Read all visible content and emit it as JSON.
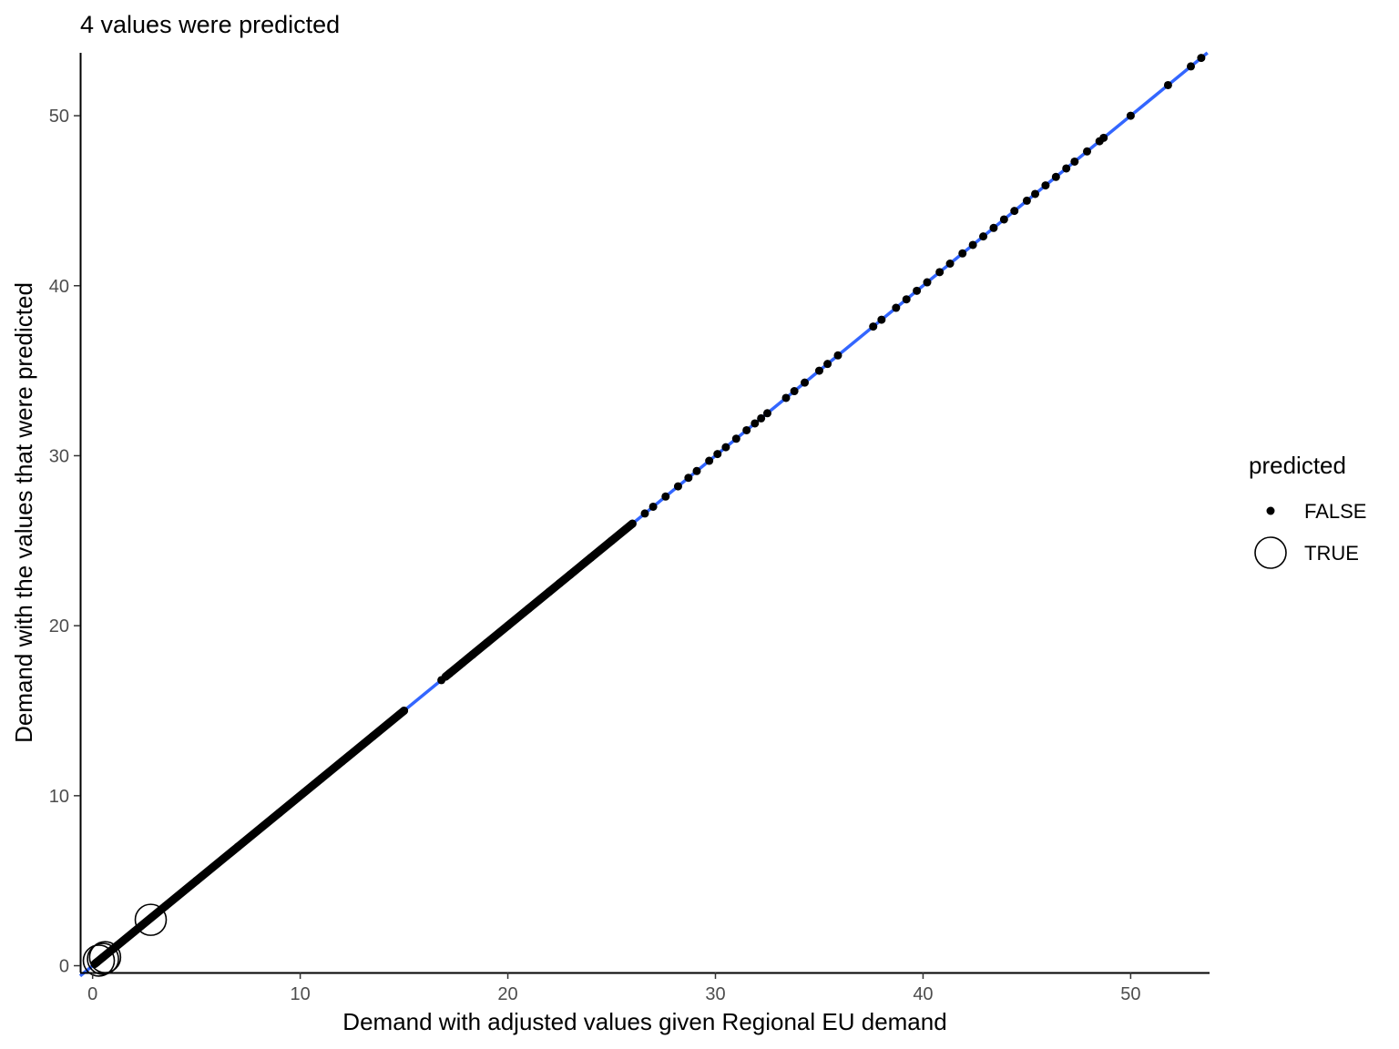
{
  "chart_data": {
    "type": "scatter",
    "title": "4 values were predicted",
    "xlabel": "Demand with adjusted values given Regional EU demand",
    "ylabel": "Demand with the values that were predicted",
    "xlim": [
      -0.6,
      53.8
    ],
    "ylim": [
      -0.4,
      53.7
    ],
    "x_ticks": [
      0,
      10,
      20,
      30,
      40,
      50
    ],
    "y_ticks": [
      0,
      10,
      20,
      30,
      40,
      50
    ],
    "grid": false,
    "legend": {
      "title": "predicted",
      "placement": "right",
      "entries": [
        {
          "label": "FALSE",
          "marker": "small filled circle"
        },
        {
          "label": "TRUE",
          "marker": "large open circle"
        }
      ]
    },
    "fit_line": {
      "slope": 1,
      "intercept": 0,
      "color": "#3366FF"
    },
    "series": [
      {
        "name": "FALSE",
        "dense_segments": [
          [
            0.1,
            15.0
          ],
          [
            17.0,
            26.0
          ]
        ],
        "points": [
          0.2,
          0.5,
          1.0,
          2.0,
          3.5,
          5.0,
          7.0,
          9.0,
          11.0,
          12.0,
          13.5,
          15.0,
          16.8,
          17.2,
          17.8,
          18.3,
          19.0,
          20.0,
          21.0,
          22.0,
          22.5,
          23.0,
          24.0,
          25.0,
          26.0,
          26.6,
          27.0,
          27.6,
          28.2,
          28.7,
          29.1,
          29.7,
          30.1,
          30.5,
          31.0,
          31.5,
          31.9,
          32.2,
          32.5,
          33.4,
          33.8,
          34.3,
          35.0,
          35.4,
          35.9,
          37.6,
          38.0,
          38.7,
          39.2,
          39.7,
          40.2,
          40.8,
          41.3,
          41.9,
          42.4,
          42.9,
          43.4,
          43.9,
          44.4,
          45.0,
          45.4,
          45.9,
          46.4,
          46.9,
          47.3,
          47.9,
          48.5,
          48.7,
          50.0,
          51.8,
          52.9,
          53.4
        ],
        "color": "#000000"
      },
      {
        "name": "TRUE",
        "points": [
          [
            0.3,
            0.3
          ],
          [
            0.5,
            0.4
          ],
          [
            0.6,
            0.5
          ],
          [
            2.8,
            2.7
          ]
        ],
        "color": "#000000"
      }
    ]
  }
}
